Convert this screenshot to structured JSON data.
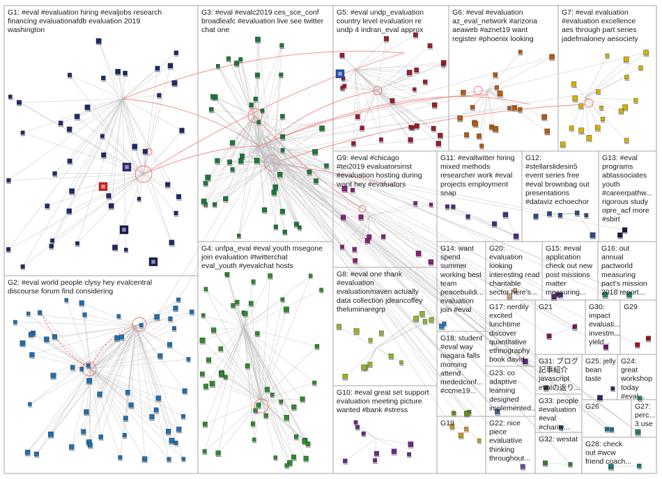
{
  "colors": {
    "G1": "#1f2a6b",
    "G2": "#1f6fb5",
    "G3": "#1a7a3a",
    "G4": "#2e8b2e",
    "G5": "#9b1b2b",
    "G6": "#b55a10",
    "G7": "#d4b200",
    "G8": "#8fb52c",
    "G9": "#8a1f7a",
    "G10": "#6b2a8a",
    "G11": "#4a2a8a",
    "G12": "#2a4a8a",
    "G13": "#1a1a4a",
    "G14": "#2a7ab5",
    "G15": "#4a2a6a",
    "G16": "#2a8a5a",
    "G17": "#5a2a7a",
    "G18": "#6a8a1a",
    "G19": "#c89a1a",
    "G20": "#c8a87a",
    "G21": "#7a1a5a",
    "G22": "#6a4a9a",
    "G23": "#3a6a9a",
    "G24": "#2a8a6a",
    "G25": "#2a2a6a",
    "G26": "#1a6a8a",
    "G27": "#2a7a5a",
    "G28": "#1a7a7a",
    "G29": "#9a1a1a",
    "G30": "#6a1a6a",
    "G31": "#3a3a3a",
    "G32": "#3a7a3a",
    "G33": "#1a4a7a"
  },
  "groups": [
    {
      "id": "G1",
      "lines": [
        "G1: #eval #evaluation hiring #evaljobs research",
        "financing evaluationafdb evaluation 2019",
        "washington"
      ]
    },
    {
      "id": "G2",
      "lines": [
        "G2: #eval world people clysy hey evalcentral",
        "discourse forum find considering"
      ]
    },
    {
      "id": "G3",
      "lines": [
        "G3: #eval #evalc2019 ces_sce_conf",
        "broadleafc #evaluation live see twitter",
        "chat one"
      ]
    },
    {
      "id": "G4",
      "lines": [
        "G4: unfpa_eval #eval youth msegone",
        "join evaluation #twitterchat",
        "eval_youth #yevalchat hosts"
      ]
    },
    {
      "id": "G5",
      "lines": [
        "G5: #eval undp_evaluation",
        "country level evaluation re",
        "undp 4 indran_eval approx"
      ]
    },
    {
      "id": "G6",
      "lines": [
        "G6: #eval #evaluation",
        "az_eval_network #arizona",
        "aeaweb #aznet19 want",
        "register #phoenix looking"
      ]
    },
    {
      "id": "G7",
      "lines": [
        "G7: #eval evaluation",
        "#evaluation excellence",
        "aes through part series",
        "jadefmaloney aesociety"
      ]
    },
    {
      "id": "G8",
      "lines": [
        "G8: #eval one thank",
        "#evaluation",
        "evaluationmaven actually",
        "data collection jdeancoffey",
        "theluminaregrp"
      ]
    },
    {
      "id": "G9",
      "lines": [
        "G9: #eval #chicago",
        "#tei2019 evaluatorsinst",
        "#evaluation hosting during",
        "want hey #evaluators"
      ]
    },
    {
      "id": "G10",
      "lines": [
        "G10: #eval great set support",
        "evaluation meeting picture",
        "wanted #bank #stress"
      ]
    },
    {
      "id": "G11",
      "lines": [
        "G11: #evaltwitter hiring",
        "mixed methods",
        "researcher work #eval",
        "projects employment",
        "snap"
      ]
    },
    {
      "id": "G12",
      "lines": [
        "G12:",
        "#stellarslidesin5",
        "event series free",
        "#eval brownbag out",
        "presentations",
        "#dataviz echoechor"
      ]
    },
    {
      "id": "G13",
      "lines": [
        "G13: #eval",
        "programs",
        "abtassociates",
        "youth",
        "#careerpathw...",
        "rigorous study",
        "opre_acf more",
        "#sbirt"
      ]
    },
    {
      "id": "G14",
      "lines": [
        "G14: want",
        "spend",
        "summer",
        "working best",
        "team",
        "peacebuildi...",
        "evaluation",
        "join #eval"
      ]
    },
    {
      "id": "G15",
      "lines": [
        "G15: #eval",
        "application",
        "check out new",
        "post missions",
        "matter",
        "measuring..."
      ]
    },
    {
      "id": "G16",
      "lines": [
        "G16: out",
        "annual",
        "pactworld",
        "measuring",
        "pact's mission",
        "2018 report..."
      ]
    },
    {
      "id": "G17",
      "lines": [
        "G17: nerdily",
        "excited",
        "lunchtime",
        "discover",
        "quantitative",
        "ethnography",
        "book david..."
      ]
    },
    {
      "id": "G18",
      "lines": [
        "G18: student",
        "#eval way",
        "niagara falls",
        "morning",
        "attend",
        "mededconf...",
        "#ccme19..."
      ]
    },
    {
      "id": "G19",
      "lines": [
        "G19"
      ]
    },
    {
      "id": "G20",
      "lines": [
        "G20:",
        "evaluation",
        "looking",
        "interesting read",
        "charitable",
        "sector here's..."
      ]
    },
    {
      "id": "G21",
      "lines": [
        "G21"
      ]
    },
    {
      "id": "G22",
      "lines": [
        "G22: nice",
        "piece",
        "evaluative",
        "thinking",
        "throughout..."
      ]
    },
    {
      "id": "G23",
      "lines": [
        "G23: co",
        "adaptive",
        "learning",
        "designed",
        "implemented..."
      ]
    },
    {
      "id": "G24",
      "lines": [
        "G24:",
        "great",
        "workshop",
        "today",
        "#eval..."
      ]
    },
    {
      "id": "G25",
      "lines": [
        "G25: jelly",
        "bean",
        "taste"
      ]
    },
    {
      "id": "G26",
      "lines": [
        "G26"
      ]
    },
    {
      "id": "G27",
      "lines": [
        "G27:",
        "perc...",
        "3 use"
      ]
    },
    {
      "id": "G28",
      "lines": [
        "G28: check",
        "out #wcw",
        "friend coach..."
      ]
    },
    {
      "id": "G29",
      "lines": [
        "G29"
      ]
    },
    {
      "id": "G30",
      "lines": [
        "G30:",
        "impact",
        "evaluati...",
        "investm...",
        "yield..."
      ]
    },
    {
      "id": "G31",
      "lines": [
        "G31: ブログ",
        "記事紹介",
        "javascript",
        "evalの返り..."
      ]
    },
    {
      "id": "G32",
      "lines": [
        "G32: westat"
      ]
    },
    {
      "id": "G33",
      "lines": [
        "G33: people",
        "#evaluation",
        "#eval",
        "#charity..."
      ]
    }
  ]
}
